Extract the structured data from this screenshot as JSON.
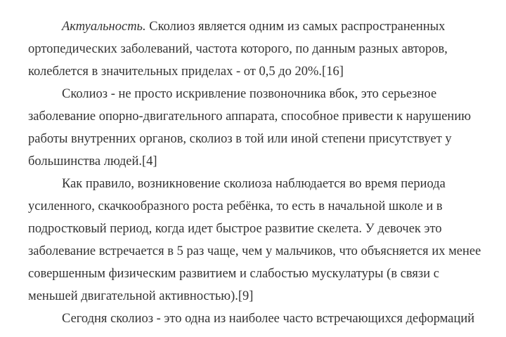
{
  "paragraphs": [
    {
      "lead_italic": "Актуальность.",
      "lines": [
        " Сколиоз является одним из самых распространенных",
        "ортопедических заболеваний, частота которого, по данным разных авторов,",
        "колеблется в значительных приделах - от 0,5 до 20%.[16]"
      ]
    },
    {
      "lines": [
        "Сколиоз - не просто искривление позвоночника вбок, это серьезное",
        "заболевание опорно-двигательного аппарата, способное привести к нарушению",
        "работы внутренних органов, сколиоз в той или иной степени присутствует у",
        "большинства людей.[4]"
      ]
    },
    {
      "lines": [
        "Как правило, возникновение сколиоза наблюдается во время периода",
        "усиленного, скачкообразного роста ребёнка, то есть в начальной школе и в",
        "подростковый период, когда идет быстрое развитие скелета. У девочек это",
        "заболевание встречается в 5 раз чаще, чем у мальчиков, что объясняется их менее",
        "совершенным физическим развитием и слабостью мускулатуры (в связи с",
        "меньшей двигательной активностью).[9]"
      ]
    },
    {
      "lines": [
        "Сегодня сколиоз - это одна из наиболее часто встречающихся деформаций"
      ]
    }
  ]
}
